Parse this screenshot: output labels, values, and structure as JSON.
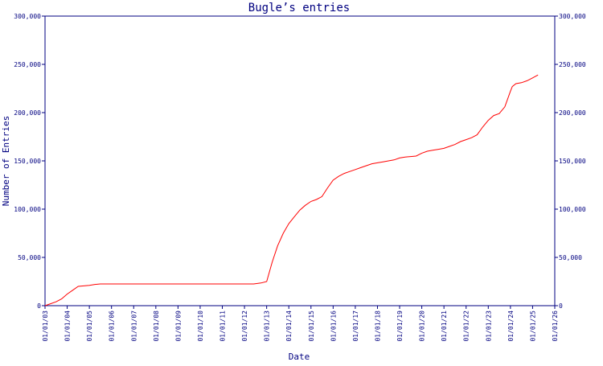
{
  "chart_data": {
    "type": "line",
    "title": "Bugle’s entries",
    "xlabel": "Date",
    "ylabel": "Number of Entries",
    "colors": {
      "axis": "#000080",
      "text": "#000080",
      "series": "#ff0000",
      "background": "#ffffff"
    },
    "x_ticks": [
      "01/01/03",
      "01/01/04",
      "01/01/05",
      "01/01/06",
      "01/01/07",
      "01/01/08",
      "01/01/09",
      "01/01/10",
      "01/01/11",
      "01/01/12",
      "01/01/13",
      "01/01/14",
      "01/01/15",
      "01/01/16",
      "01/01/17",
      "01/01/18",
      "01/01/19",
      "01/01/20",
      "01/01/21",
      "01/01/22",
      "01/01/23",
      "01/01/24",
      "01/01/25",
      "01/01/26"
    ],
    "y_ticks": [
      "0",
      "50,000",
      "100,000",
      "150,000",
      "200,000",
      "250,000",
      "300,000"
    ],
    "y_tick_values": [
      0,
      50000,
      100000,
      150000,
      200000,
      250000,
      300000
    ],
    "ylim": [
      0,
      300000
    ],
    "xlim": [
      "2003-01-01",
      "2026-01-01"
    ],
    "right_axis_mirror": true,
    "grid": false,
    "series": [
      {
        "x": [
          "2003-01-01",
          "2003-04-01",
          "2003-07-01",
          "2003-10-01",
          "2004-01-01",
          "2004-04-01",
          "2004-07-01",
          "2004-10-01",
          "2005-01-01",
          "2005-04-01",
          "2005-07-01",
          "2006-01-01",
          "2007-01-01",
          "2008-01-01",
          "2009-01-01",
          "2010-01-01",
          "2011-01-01",
          "2012-01-01",
          "2012-06-01",
          "2012-10-01",
          "2013-01-01",
          "2013-04-01",
          "2013-07-01",
          "2013-10-01",
          "2014-01-01",
          "2014-04-01",
          "2014-07-01",
          "2014-10-01",
          "2015-01-01",
          "2015-04-01",
          "2015-07-01",
          "2015-10-01",
          "2016-01-01",
          "2016-04-01",
          "2016-07-01",
          "2016-10-01",
          "2017-01-01",
          "2017-04-01",
          "2017-07-01",
          "2017-10-01",
          "2018-01-01",
          "2018-04-01",
          "2018-07-01",
          "2018-10-01",
          "2019-01-01",
          "2019-04-01",
          "2019-07-01",
          "2019-10-01",
          "2020-01-01",
          "2020-04-01",
          "2020-07-01",
          "2020-10-01",
          "2021-01-01",
          "2021-04-01",
          "2021-07-01",
          "2021-10-01",
          "2022-01-01",
          "2022-04-01",
          "2022-07-01",
          "2022-10-01",
          "2023-01-01",
          "2023-04-01",
          "2023-07-01",
          "2023-10-01",
          "2024-01-01",
          "2024-02-01",
          "2024-04-01",
          "2024-07-01",
          "2024-10-01",
          "2025-01-01",
          "2025-04-01"
        ],
        "y": [
          0,
          2000,
          4000,
          7000,
          12000,
          16000,
          20000,
          20500,
          21000,
          22000,
          22500,
          22500,
          22500,
          22500,
          22500,
          22500,
          22500,
          22500,
          22500,
          23500,
          25000,
          45000,
          62000,
          75000,
          85000,
          92000,
          99000,
          104000,
          108000,
          110000,
          113000,
          122000,
          130000,
          134000,
          137000,
          139000,
          141000,
          143000,
          145000,
          147000,
          148000,
          149000,
          150000,
          151000,
          153000,
          154000,
          154500,
          155000,
          158000,
          160000,
          161000,
          162000,
          163000,
          165000,
          167000,
          170000,
          172000,
          174000,
          177000,
          185000,
          192000,
          197000,
          199000,
          206000,
          222000,
          227000,
          230000,
          231000,
          233000,
          236000,
          239000
        ]
      }
    ]
  }
}
